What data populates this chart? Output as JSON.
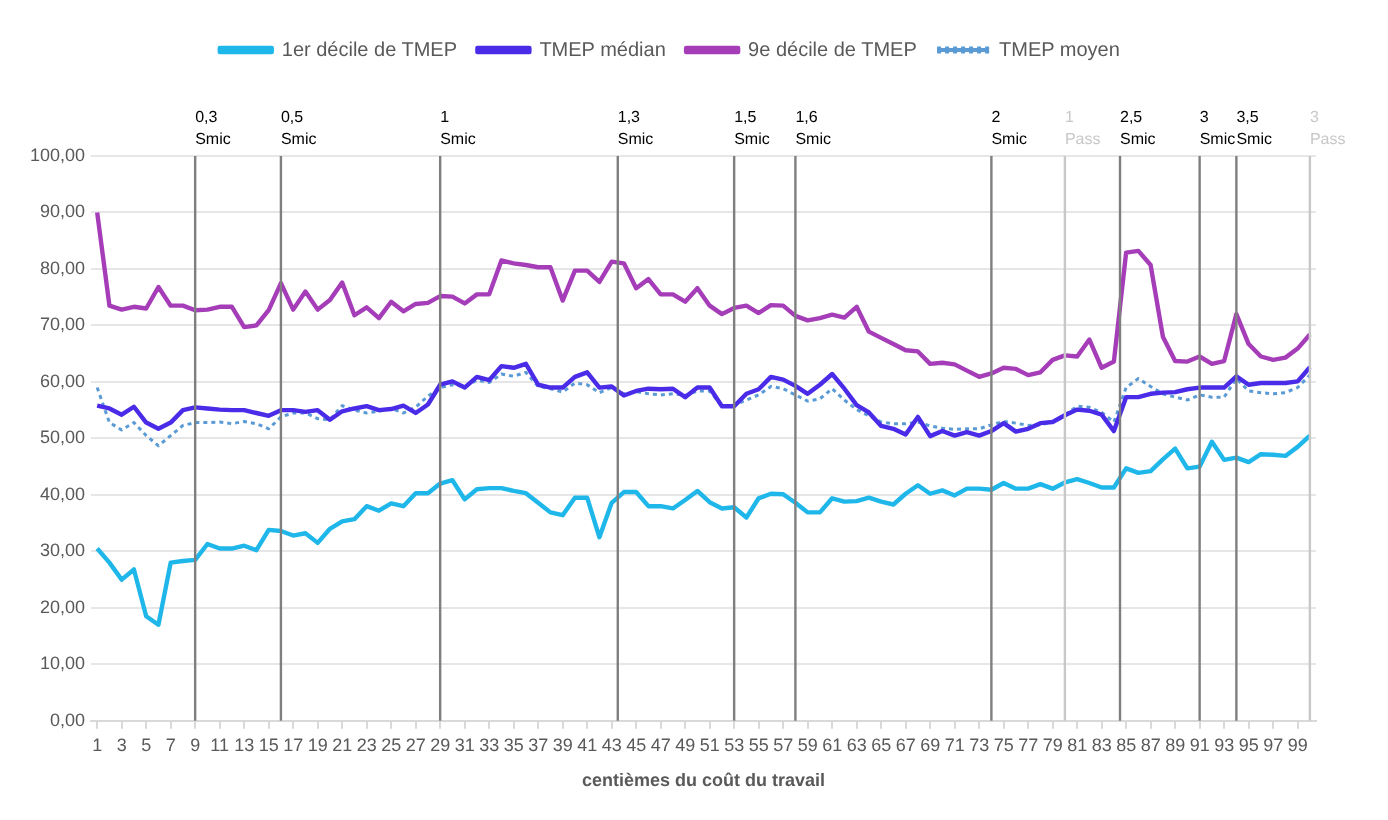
{
  "chart_data": {
    "type": "line",
    "xlabel": "centièmes du coût du travail",
    "x": [
      1,
      2,
      3,
      4,
      5,
      6,
      7,
      8,
      9,
      10,
      11,
      12,
      13,
      14,
      15,
      16,
      17,
      18,
      19,
      20,
      21,
      22,
      23,
      24,
      25,
      26,
      27,
      28,
      29,
      30,
      31,
      32,
      33,
      34,
      35,
      36,
      37,
      38,
      39,
      40,
      41,
      42,
      43,
      44,
      45,
      46,
      47,
      48,
      49,
      50,
      51,
      52,
      53,
      54,
      55,
      56,
      57,
      58,
      59,
      60,
      61,
      62,
      63,
      64,
      65,
      66,
      67,
      68,
      69,
      70,
      71,
      72,
      73,
      74,
      75,
      76,
      77,
      78,
      79,
      80,
      81,
      82,
      83,
      84,
      85,
      86,
      87,
      88,
      89,
      90,
      91,
      92,
      93,
      94,
      95,
      96,
      97,
      98,
      99,
      100
    ],
    "xlim": [
      0.5,
      100.5
    ],
    "xticks": [
      1,
      3,
      5,
      7,
      9,
      11,
      13,
      15,
      17,
      19,
      21,
      23,
      25,
      27,
      29,
      31,
      33,
      35,
      37,
      39,
      41,
      43,
      45,
      47,
      49,
      51,
      53,
      55,
      57,
      59,
      61,
      63,
      65,
      67,
      69,
      71,
      73,
      75,
      77,
      79,
      81,
      83,
      85,
      87,
      89,
      91,
      93,
      95,
      97,
      99
    ],
    "ylim": [
      0,
      100
    ],
    "yticks": [
      {
        "value": 0,
        "label": "0,00"
      },
      {
        "value": 10,
        "label": "10,00"
      },
      {
        "value": 20,
        "label": "20,00"
      },
      {
        "value": 30,
        "label": "30,00"
      },
      {
        "value": 40,
        "label": "40,00"
      },
      {
        "value": 50,
        "label": "50,00"
      },
      {
        "value": 60,
        "label": "60,00"
      },
      {
        "value": 70,
        "label": "70,00"
      },
      {
        "value": 80,
        "label": "80,00"
      },
      {
        "value": 90,
        "label": "90,00"
      },
      {
        "value": 100,
        "label": "100,00"
      }
    ],
    "grid": "y",
    "legend": "top",
    "marker": "none",
    "series": [
      {
        "name": "1er décile de TMEP",
        "color": "#1fb7ea",
        "line_style": "solid",
        "values": [
          30.5,
          28,
          25,
          26.8,
          18.5,
          17,
          28,
          28.3,
          28.5,
          31.3,
          30.5,
          30.5,
          31,
          30.2,
          33.8,
          33.6,
          32.8,
          33.2,
          31.5,
          34,
          35.3,
          35.7,
          38,
          37.2,
          38.5,
          38,
          40.3,
          40.3,
          42,
          42.6,
          39.2,
          41,
          41.2,
          41.2,
          40.7,
          40.3,
          38.6,
          36.9,
          36.4,
          39.5,
          39.5,
          32.5,
          38.6,
          40.5,
          40.5,
          38,
          38,
          37.6,
          39.1,
          40.7,
          38.7,
          37.6,
          37.8,
          36,
          39.4,
          40.2,
          40.1,
          38.6,
          36.9,
          36.9,
          39.4,
          38.8,
          38.9,
          39.5,
          38.8,
          38.3,
          40.2,
          41.7,
          40.2,
          40.8,
          39.9,
          41.1,
          41.1,
          40.9,
          42.1,
          41.1,
          41.1,
          41.9,
          41.1,
          42.2,
          42.8,
          42.1,
          41.3,
          41.3,
          44.7,
          43.9,
          44.2,
          46.3,
          48.2,
          44.7,
          45,
          49.4,
          46.2,
          46.6,
          45.8,
          47.2,
          47.1,
          46.9,
          48.5,
          50.5
        ]
      },
      {
        "name": "TMEP médian",
        "color": "#4a2be8",
        "line_style": "solid",
        "values": [
          55.8,
          55.3,
          54.2,
          55.6,
          52.8,
          51.7,
          52.8,
          55,
          55.5,
          55.3,
          55.1,
          55,
          55,
          54.5,
          54,
          55,
          55,
          54.7,
          55,
          53.3,
          54.8,
          55.3,
          55.7,
          55,
          55.2,
          55.8,
          54.5,
          56,
          59.5,
          60.1,
          59,
          60.9,
          60.3,
          62.8,
          62.5,
          63.2,
          59.5,
          59,
          59,
          60.9,
          61.7,
          59,
          59.2,
          57.6,
          58.4,
          58.8,
          58.7,
          58.8,
          57.3,
          59,
          59,
          55.7,
          55.7,
          57.9,
          58.7,
          60.9,
          60.4,
          59.3,
          57.9,
          59.5,
          61.4,
          58.8,
          55.9,
          54.6,
          52.2,
          51.7,
          50.7,
          53.8,
          50.4,
          51.3,
          50.5,
          51.1,
          50.5,
          51.3,
          52.7,
          51.2,
          51.7,
          52.7,
          52.9,
          54.1,
          55.1,
          54.9,
          54.2,
          51.3,
          57.3,
          57.3,
          57.9,
          58.1,
          58.2,
          58.7,
          59,
          59,
          59,
          61,
          59.5,
          59.8,
          59.8,
          59.8,
          60.1,
          62.6
        ]
      },
      {
        "name": "9e décile de TMEP",
        "color": "#a63db8",
        "line_style": "solid",
        "values": [
          90,
          73.5,
          72.8,
          73.3,
          73,
          76.8,
          73.5,
          73.5,
          72.7,
          72.8,
          73.3,
          73.3,
          69.7,
          70,
          72.7,
          77.5,
          72.8,
          76,
          72.8,
          74.5,
          77.6,
          71.8,
          73.2,
          71.3,
          74.2,
          72.5,
          73.8,
          74,
          75.2,
          75.1,
          73.9,
          75.5,
          75.5,
          81.5,
          81,
          80.7,
          80.3,
          80.3,
          74.4,
          79.7,
          79.7,
          77.7,
          81.3,
          81,
          76.6,
          78.2,
          75.5,
          75.5,
          74.2,
          76.6,
          73.5,
          72,
          73.1,
          73.5,
          72.2,
          73.6,
          73.5,
          71.7,
          70.9,
          71.3,
          71.9,
          71.4,
          73.3,
          68.9,
          67.8,
          66.7,
          65.6,
          65.4,
          63.2,
          63.4,
          63.1,
          62,
          60.9,
          61.5,
          62.5,
          62.3,
          61.2,
          61.7,
          63.9,
          64.7,
          64.5,
          67.5,
          62.5,
          63.6,
          82.9,
          83.2,
          80.7,
          68,
          63.7,
          63.6,
          64.5,
          63.2,
          63.7,
          72,
          66.7,
          64.5,
          63.9,
          64.3,
          65.9,
          68.4
        ]
      },
      {
        "name": "TMEP moyen",
        "color": "#5b9bd5",
        "line_style": "dotted",
        "values": [
          59,
          52.8,
          51.5,
          52.8,
          50.5,
          48.7,
          50.5,
          52.3,
          52.8,
          52.8,
          52.9,
          52.6,
          53,
          52.6,
          51.7,
          53.8,
          54.5,
          54.5,
          53.5,
          53.3,
          55.8,
          55,
          54.5,
          54.8,
          55.3,
          54.5,
          55.5,
          57.5,
          59,
          59.5,
          59.2,
          60.3,
          59.9,
          61.4,
          61,
          61.7,
          59.2,
          58.8,
          58.2,
          59.8,
          59.5,
          58.1,
          59,
          57.9,
          58.3,
          57.9,
          57.7,
          57.9,
          57.6,
          58.4,
          58.4,
          55.7,
          55.9,
          56.8,
          57.7,
          59.2,
          58.8,
          57.7,
          56.6,
          57,
          58.8,
          56.8,
          55.1,
          54,
          52.9,
          52.6,
          52.6,
          52.9,
          52.2,
          51.8,
          51.6,
          51.7,
          51.7,
          52.4,
          53,
          52.7,
          52.3,
          52.4,
          52.9,
          54.2,
          55.7,
          55.5,
          54.6,
          52.9,
          59,
          60.6,
          59.2,
          57.9,
          57.3,
          56.8,
          57.7,
          57.3,
          57.3,
          60.6,
          58.4,
          58.1,
          57.9,
          58.1,
          59,
          61.2
        ]
      }
    ],
    "ref_lines": [
      {
        "axis": "x",
        "value": 9,
        "label": "0,3 Smic",
        "color": "#7f7f7f"
      },
      {
        "axis": "x",
        "value": 16,
        "label": "0,5 Smic",
        "color": "#7f7f7f"
      },
      {
        "axis": "x",
        "value": 29,
        "label": "1 Smic",
        "color": "#7f7f7f"
      },
      {
        "axis": "x",
        "value": 43.5,
        "label": "1,3 Smic",
        "color": "#7f7f7f"
      },
      {
        "axis": "x",
        "value": 53,
        "label": "1,5 Smic",
        "color": "#7f7f7f"
      },
      {
        "axis": "x",
        "value": 58,
        "label": "1,6 Smic",
        "color": "#7f7f7f"
      },
      {
        "axis": "x",
        "value": 74,
        "label": "2 Smic",
        "color": "#7f7f7f"
      },
      {
        "axis": "x",
        "value": 80,
        "label": "1 Pass",
        "color": "#c8c8c8"
      },
      {
        "axis": "x",
        "value": 84.5,
        "label": "2,5 Smic",
        "color": "#7f7f7f"
      },
      {
        "axis": "x",
        "value": 91,
        "label": "3 Smic",
        "color": "#7f7f7f"
      },
      {
        "axis": "x",
        "value": 94,
        "label": "3,5 Smic",
        "color": "#7f7f7f"
      },
      {
        "axis": "x",
        "value": 100,
        "label": "3 Pass",
        "color": "#c8c8c8"
      }
    ]
  }
}
